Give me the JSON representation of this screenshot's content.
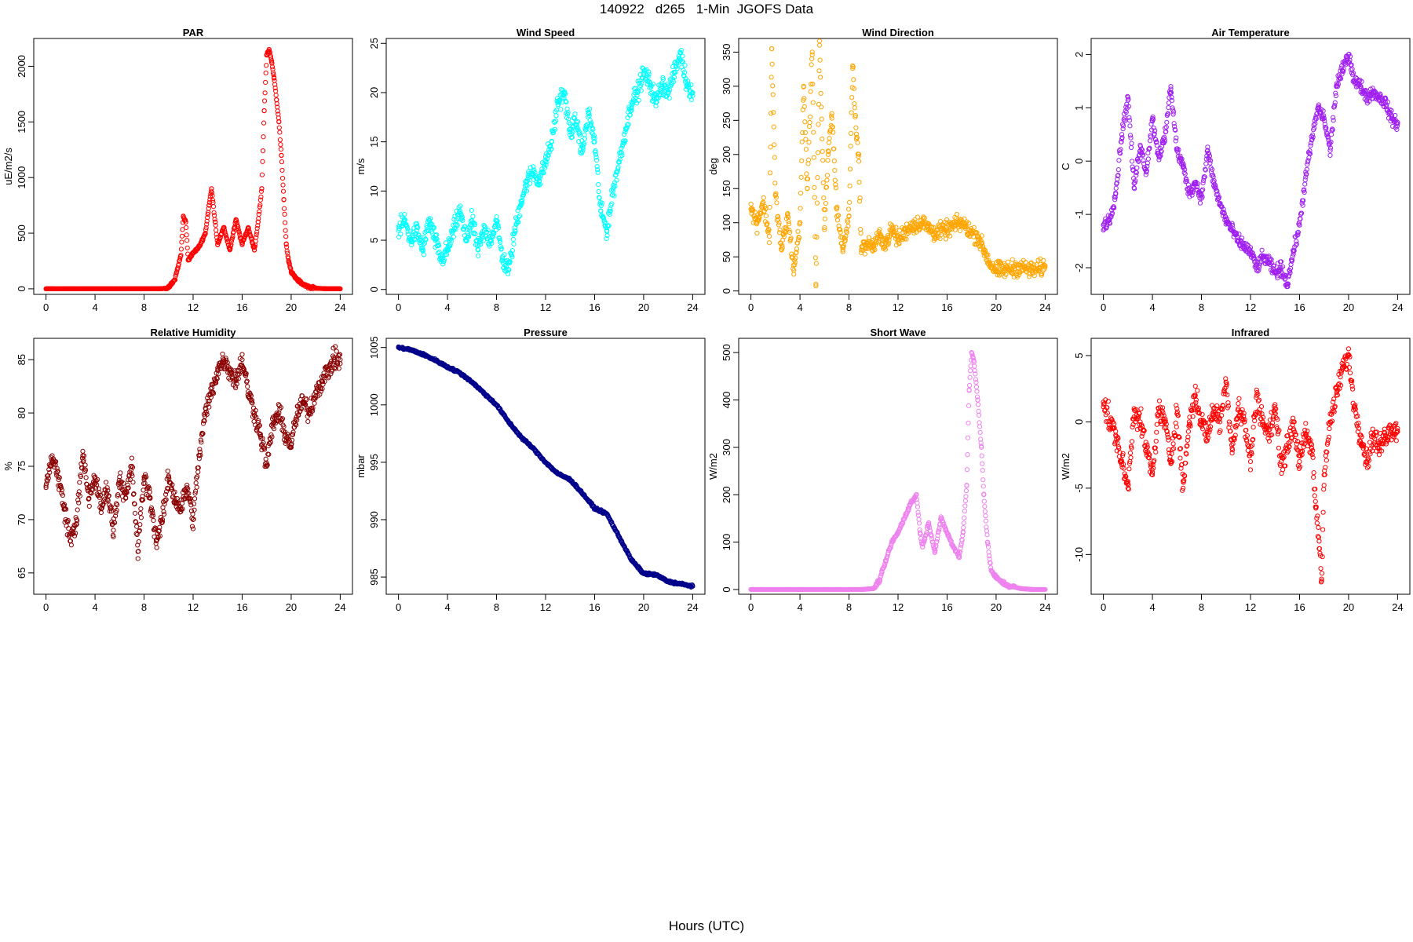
{
  "figure": {
    "title": "140922   d265   1-Min  JGOFS Data",
    "xlabel": "Hours (UTC)"
  },
  "chart_data": [
    {
      "type": "scatter",
      "title": "PAR",
      "ylabel": "uE/m2/s",
      "color": "#ff0000",
      "xlim": [
        -1,
        25
      ],
      "ylim": [
        -50,
        2250
      ],
      "xticks": [
        0,
        4,
        8,
        12,
        16,
        20,
        24
      ],
      "yticks": [
        0,
        500,
        1000,
        1500,
        2000
      ],
      "x": [
        0,
        1,
        2,
        3,
        4,
        5,
        6,
        7,
        8,
        9,
        9.5,
        10,
        10.5,
        11,
        11.2,
        11.4,
        11.6,
        12,
        12.5,
        13,
        13.3,
        13.5,
        13.8,
        14,
        14.5,
        15,
        15.5,
        16,
        16.5,
        17,
        17.3,
        17.6,
        17.8,
        18,
        18.2,
        18.4,
        18.6,
        18.8,
        19,
        19.2,
        19.4,
        19.6,
        19.8,
        20,
        20.5,
        21,
        21.5,
        22,
        23,
        24
      ],
      "y": [
        0,
        0,
        0,
        0,
        0,
        0,
        0,
        0,
        0,
        0,
        2,
        10,
        80,
        300,
        650,
        600,
        260,
        320,
        380,
        500,
        750,
        900,
        600,
        400,
        550,
        350,
        620,
        400,
        550,
        350,
        600,
        900,
        1600,
        2100,
        2150,
        2050,
        1900,
        1700,
        1500,
        1200,
        800,
        400,
        250,
        150,
        80,
        40,
        15,
        5,
        0,
        0
      ]
    },
    {
      "type": "scatter",
      "title": "Wind Speed",
      "ylabel": "m/s",
      "color": "#00ffff",
      "xlim": [
        -1,
        25
      ],
      "ylim": [
        -0.5,
        25.5
      ],
      "xticks": [
        0,
        4,
        8,
        12,
        16,
        20,
        24
      ],
      "yticks": [
        0,
        5,
        10,
        15,
        20,
        25
      ],
      "x": [
        0,
        0.5,
        1,
        1.5,
        2,
        2.5,
        3,
        3.5,
        4,
        4.5,
        5,
        5.5,
        6,
        6.5,
        7,
        7.5,
        8,
        8.5,
        9,
        9.5,
        10,
        10.5,
        11,
        11.5,
        12,
        12.5,
        13,
        13.5,
        14,
        14.5,
        15,
        15.5,
        16,
        16.5,
        17,
        17.5,
        18,
        18.5,
        19,
        19.5,
        20,
        20.5,
        21,
        21.5,
        22,
        22.5,
        23,
        23.5,
        24
      ],
      "y": [
        6,
        7,
        5,
        6,
        4,
        7,
        5,
        3,
        4,
        6,
        8,
        5,
        7,
        4,
        6,
        5,
        7,
        3,
        2,
        6,
        9,
        11,
        12,
        11,
        13,
        15,
        19,
        20,
        16,
        17,
        14,
        18,
        15,
        8,
        6,
        10,
        13,
        16,
        19,
        20,
        22,
        21,
        19,
        21,
        20,
        22,
        24,
        21,
        20
      ]
    },
    {
      "type": "scatter",
      "title": "Wind Direction",
      "ylabel": "deg",
      "color": "#ffa500",
      "xlim": [
        -1,
        25
      ],
      "ylim": [
        -5,
        370
      ],
      "xticks": [
        0,
        4,
        8,
        12,
        16,
        20,
        24
      ],
      "yticks": [
        0,
        50,
        100,
        150,
        200,
        250,
        300,
        350
      ],
      "x": [
        0,
        0.5,
        1,
        1.5,
        1.7,
        2,
        2.5,
        3,
        3.5,
        4,
        4.3,
        4.6,
        5,
        5.3,
        5.6,
        6,
        6.3,
        6.6,
        7,
        7.5,
        8,
        8.3,
        8.6,
        8.8,
        9,
        9.5,
        10,
        10.5,
        11,
        11.5,
        12,
        13,
        14,
        15,
        16,
        17,
        17.5,
        18,
        18.5,
        19,
        19.5,
        20,
        21,
        22,
        23,
        24
      ],
      "y": [
        120,
        100,
        130,
        80,
        355,
        140,
        60,
        110,
        30,
        100,
        300,
        150,
        350,
        10,
        360,
        90,
        200,
        260,
        120,
        60,
        110,
        330,
        230,
        190,
        60,
        70,
        65,
        80,
        70,
        90,
        75,
        95,
        100,
        85,
        90,
        100,
        95,
        85,
        80,
        60,
        40,
        30,
        32,
        35,
        30,
        35
      ]
    },
    {
      "type": "scatter",
      "title": "Air Temperature",
      "ylabel": "C",
      "color": "#a020f0",
      "xlim": [
        -1,
        25
      ],
      "ylim": [
        -2.5,
        2.3
      ],
      "xticks": [
        0,
        4,
        8,
        12,
        16,
        20,
        24
      ],
      "yticks": [
        -2,
        -1,
        0,
        1,
        2
      ],
      "x": [
        0,
        0.5,
        1,
        1.5,
        2,
        2.5,
        3,
        3.5,
        4,
        4.5,
        5,
        5.5,
        6,
        6.5,
        7,
        7.5,
        8,
        8.5,
        9,
        9.5,
        10,
        10.5,
        11,
        11.5,
        12,
        12.5,
        13,
        13.5,
        14,
        14.5,
        15,
        15.5,
        16,
        16.5,
        17,
        17.5,
        18,
        18.5,
        19,
        19.5,
        20,
        20.5,
        21,
        21.5,
        22,
        22.5,
        23,
        23.5,
        24
      ],
      "y": [
        -1.2,
        -1.1,
        -0.6,
        0.5,
        1.2,
        -0.5,
        0.3,
        -0.2,
        0.8,
        0.1,
        0.4,
        1.4,
        0.2,
        -0.1,
        -0.6,
        -0.4,
        -0.7,
        0.2,
        -0.4,
        -0.8,
        -1.1,
        -1.3,
        -1.5,
        -1.6,
        -1.7,
        -2,
        -1.8,
        -1.9,
        -2.1,
        -2,
        -2.3,
        -1.7,
        -1.2,
        -0.3,
        0.4,
        1,
        0.8,
        0.2,
        1.4,
        1.7,
        2,
        1.5,
        1.4,
        1.2,
        1.3,
        1.2,
        1.1,
        0.8,
        0.7
      ]
    },
    {
      "type": "scatter",
      "title": "Relative Humidity",
      "ylabel": "%",
      "color": "#8b0000",
      "xlim": [
        -1,
        25
      ],
      "ylim": [
        63,
        87
      ],
      "xticks": [
        0,
        4,
        8,
        12,
        16,
        20,
        24
      ],
      "yticks": [
        65,
        70,
        75,
        80,
        85
      ],
      "x": [
        0,
        0.5,
        1,
        1.5,
        2,
        2.5,
        3,
        3.5,
        4,
        4.5,
        5,
        5.5,
        6,
        6.5,
        7,
        7.5,
        8,
        8.5,
        9,
        9.5,
        10,
        10.5,
        11,
        11.5,
        12,
        12.5,
        13,
        13.5,
        14,
        14.5,
        15,
        15.5,
        16,
        16.5,
        17,
        17.5,
        18,
        18.5,
        19,
        19.5,
        20,
        20.5,
        21,
        21.5,
        22,
        22.5,
        23,
        23.5,
        24
      ],
      "y": [
        73,
        76,
        74,
        71,
        68,
        70,
        76,
        72,
        74,
        71,
        73,
        69,
        74,
        72,
        75,
        67,
        74,
        72,
        68,
        70,
        74,
        72,
        71,
        73,
        70,
        76,
        80,
        82,
        84,
        85,
        84,
        83,
        85,
        82,
        80,
        78,
        75,
        79,
        80,
        78,
        77,
        80,
        81,
        80,
        82,
        83,
        84,
        85,
        85
      ]
    },
    {
      "type": "scatter",
      "title": "Pressure",
      "ylabel": "mbar",
      "color": "#00008b",
      "xlim": [
        -1,
        25
      ],
      "ylim": [
        983.5,
        1005.8
      ],
      "xticks": [
        0,
        4,
        8,
        12,
        16,
        20,
        24
      ],
      "yticks": [
        985,
        990,
        995,
        1000,
        1005
      ],
      "x": [
        0,
        1,
        2,
        3,
        4,
        5,
        6,
        7,
        8,
        9,
        10,
        11,
        12,
        13,
        14,
        15,
        16,
        17,
        18,
        19,
        20,
        21,
        22,
        23,
        24
      ],
      "y": [
        1005,
        1004.8,
        1004.4,
        1003.9,
        1003.3,
        1002.8,
        1002,
        1001,
        1000,
        998.5,
        997.2,
        996.2,
        995,
        994,
        993.5,
        992.3,
        991,
        990.5,
        988.5,
        986.5,
        985.3,
        985.2,
        984.6,
        984.4,
        984.2
      ]
    },
    {
      "type": "scatter",
      "title": "Short Wave",
      "ylabel": "W/m2",
      "color": "#ee82ee",
      "xlim": [
        -1,
        25
      ],
      "ylim": [
        -10,
        530
      ],
      "xticks": [
        0,
        4,
        8,
        12,
        16,
        20,
        24
      ],
      "yticks": [
        0,
        100,
        200,
        300,
        400,
        500
      ],
      "x": [
        0,
        1,
        2,
        3,
        4,
        5,
        6,
        7,
        8,
        9,
        10,
        10.5,
        11,
        11.5,
        12,
        12.5,
        13,
        13.5,
        13.8,
        14,
        14.5,
        15,
        15.5,
        16,
        16.5,
        17,
        17.3,
        17.6,
        17.8,
        18,
        18.2,
        18.5,
        18.8,
        19,
        19.3,
        19.6,
        20,
        20.5,
        21,
        22,
        23,
        24
      ],
      "y": [
        0,
        0,
        0,
        0,
        0,
        0,
        0,
        0,
        0,
        0,
        2,
        20,
        60,
        100,
        120,
        150,
        180,
        200,
        120,
        90,
        140,
        80,
        150,
        120,
        90,
        70,
        120,
        220,
        420,
        500,
        480,
        400,
        300,
        200,
        100,
        40,
        25,
        15,
        8,
        2,
        0,
        0
      ]
    },
    {
      "type": "scatter",
      "title": "Infrared",
      "ylabel": "W/m2",
      "color": "#ff0000",
      "xlim": [
        -1,
        25
      ],
      "ylim": [
        -13,
        6.3
      ],
      "xticks": [
        0,
        4,
        8,
        12,
        16,
        20,
        24
      ],
      "yticks": [
        -10,
        -5,
        0,
        5
      ],
      "x": [
        0,
        0.5,
        1,
        1.5,
        2,
        2.5,
        3,
        3.5,
        4,
        4.5,
        5,
        5.5,
        6,
        6.5,
        7,
        7.5,
        8,
        8.5,
        9,
        9.5,
        10,
        10.5,
        11,
        11.5,
        12,
        12.5,
        13,
        13.5,
        14,
        14.5,
        15,
        15.5,
        16,
        16.5,
        17,
        17.3,
        17.6,
        17.8,
        18,
        18.5,
        19,
        19.5,
        20,
        20.5,
        21,
        21.5,
        22,
        22.5,
        23,
        23.5,
        24
      ],
      "y": [
        1.5,
        0,
        -1,
        -3,
        -5,
        1,
        0,
        -2,
        -4,
        1,
        0,
        -3,
        1,
        -5,
        0,
        2,
        0,
        -1,
        1,
        0,
        3,
        -2,
        1,
        0,
        -3,
        2,
        0,
        -1,
        1,
        -3,
        -2,
        0,
        -3,
        -1,
        -2,
        -6,
        -9,
        -12,
        -4,
        0,
        2,
        4,
        5,
        1,
        -1,
        -3,
        -1,
        -2,
        -1,
        -0.5,
        -0.5
      ]
    }
  ]
}
